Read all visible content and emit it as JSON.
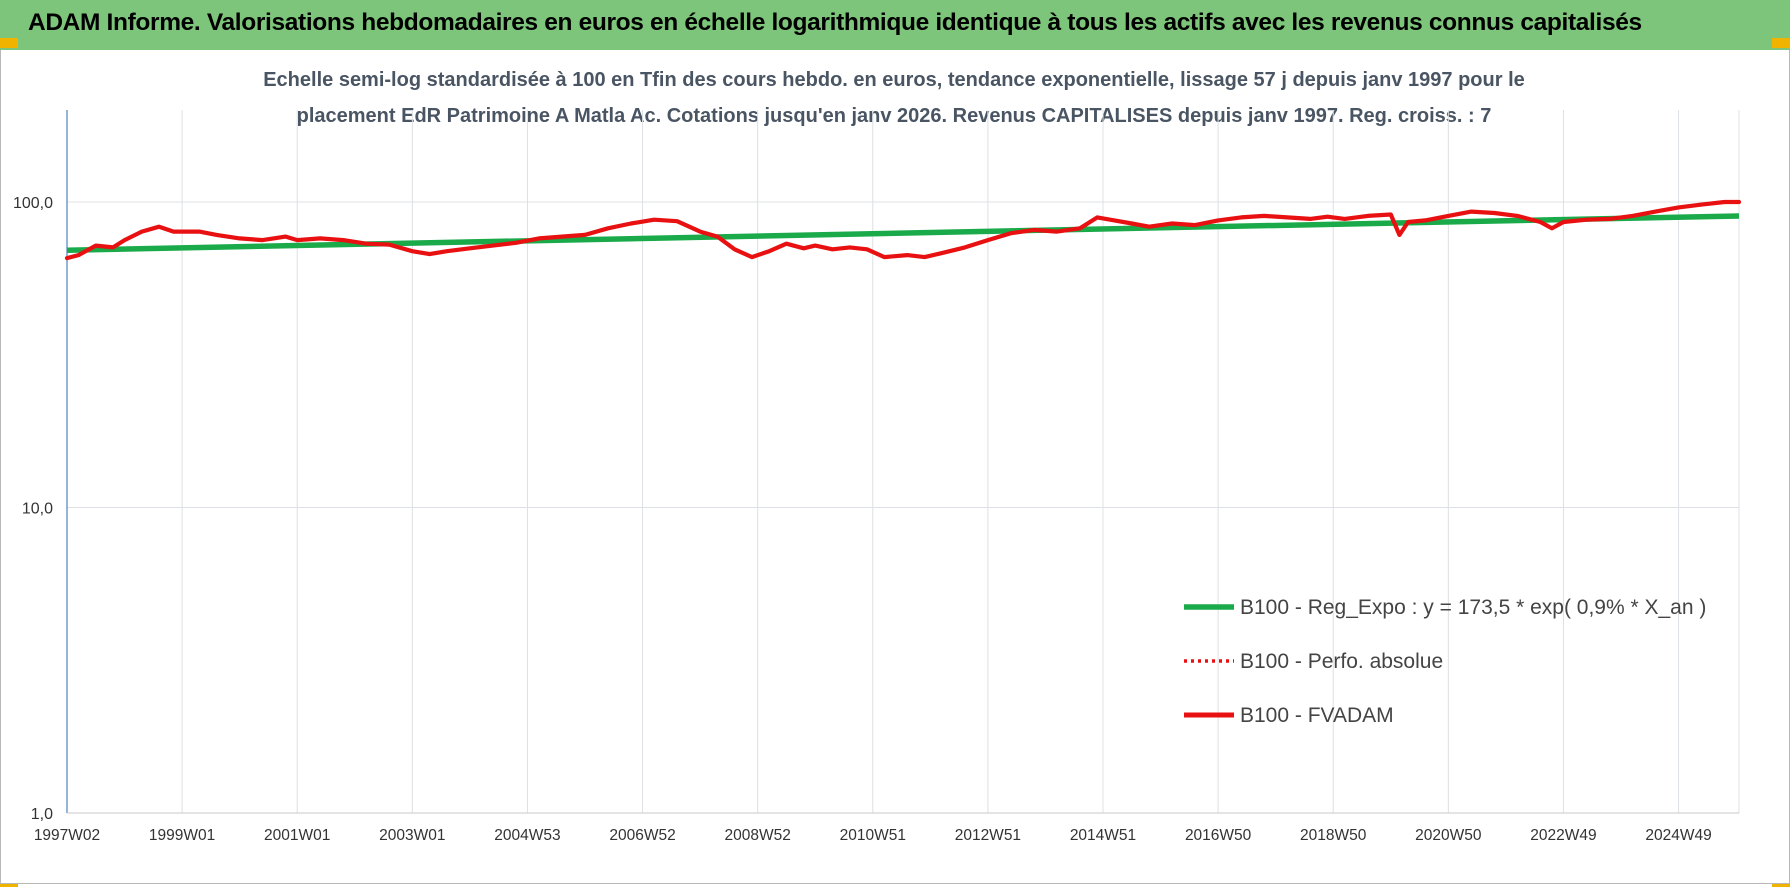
{
  "header": {
    "title": "ADAM Informe. Valorisations hebdomadaires en euros en échelle logarithmique identique à tous les actifs avec les revenus connus capitalisés"
  },
  "colors": {
    "header_bg": "#7dc57a",
    "corner_accent": "#f0b400",
    "trend": "#1aaa4a",
    "fvadam": "#e81010",
    "perfo": "#e81010",
    "grid": "#dde0e4",
    "axis": "#5b8bc4"
  },
  "chart_data": {
    "type": "line",
    "title_lines": [
      "Echelle semi-log standardisée à 100 en Tfin des cours hebdo. en euros, tendance exponentielle, lissage 57 j depuis janv 1997 pour le",
      "placement EdR Patrimoine A Matla Ac. Cotations jusqu'en janv 2026. Revenus CAPITALISES depuis janv 1997. Reg. croiss. : 7"
    ],
    "yscale": "log",
    "ylim": [
      1,
      200
    ],
    "y_ticks": [
      {
        "value": 1,
        "label": "1,0"
      },
      {
        "value": 10,
        "label": "10,0"
      },
      {
        "value": 100,
        "label": "100,0"
      }
    ],
    "xlim": [
      1997.0,
      2026.05
    ],
    "x_ticks": [
      {
        "value": 1997.0,
        "label": "1997W02"
      },
      {
        "value": 1999.0,
        "label": "1999W01"
      },
      {
        "value": 2001.0,
        "label": "2001W01"
      },
      {
        "value": 2003.0,
        "label": "2003W01"
      },
      {
        "value": 2005.0,
        "label": "2004W53"
      },
      {
        "value": 2007.0,
        "label": "2006W52"
      },
      {
        "value": 2009.0,
        "label": "2008W52"
      },
      {
        "value": 2011.0,
        "label": "2010W51"
      },
      {
        "value": 2013.0,
        "label": "2012W51"
      },
      {
        "value": 2015.0,
        "label": "2014W51"
      },
      {
        "value": 2017.0,
        "label": "2016W50"
      },
      {
        "value": 2019.0,
        "label": "2018W50"
      },
      {
        "value": 2021.0,
        "label": "2020W50"
      },
      {
        "value": 2023.0,
        "label": "2022W49"
      },
      {
        "value": 2025.0,
        "label": "2024W49"
      }
    ],
    "legend_position": "right",
    "legend": [
      {
        "name": "B100 - Reg_Expo : y = 173,5 * exp( 0,9% *  X_an )",
        "style": "solid-green"
      },
      {
        "name": "B100 - Perfo. absolue",
        "style": "dotted-red"
      },
      {
        "name": "B100 - FVADAM",
        "style": "solid-red"
      }
    ],
    "series": [
      {
        "name": "B100 - Reg_Expo : y = 173,5 * exp( 0,9% *  X_an )",
        "x": [
          1997.0,
          2026.05
        ],
        "values": [
          69.5,
          90.0
        ]
      },
      {
        "name": "B100 - FVADAM",
        "x": [
          1997.0,
          1997.2,
          1997.5,
          1997.8,
          1998.0,
          1998.3,
          1998.6,
          1998.85,
          1999.0,
          1999.3,
          1999.6,
          2000.0,
          2000.4,
          2000.8,
          2001.0,
          2001.4,
          2001.8,
          2002.2,
          2002.6,
          2003.0,
          2003.3,
          2003.6,
          2004.0,
          2004.4,
          2004.8,
          2005.2,
          2005.6,
          2006.0,
          2006.4,
          2006.8,
          2007.2,
          2007.6,
          2008.0,
          2008.3,
          2008.6,
          2008.9,
          2009.2,
          2009.5,
          2009.8,
          2010.0,
          2010.3,
          2010.6,
          2010.9,
          2011.2,
          2011.6,
          2011.9,
          2012.2,
          2012.6,
          2013.0,
          2013.4,
          2013.8,
          2014.2,
          2014.6,
          2014.9,
          2015.2,
          2015.5,
          2015.8,
          2016.2,
          2016.6,
          2017.0,
          2017.4,
          2017.8,
          2018.2,
          2018.6,
          2018.9,
          2019.2,
          2019.6,
          2020.0,
          2020.15,
          2020.3,
          2020.6,
          2021.0,
          2021.4,
          2021.8,
          2022.2,
          2022.6,
          2022.8,
          2023.0,
          2023.4,
          2023.8,
          2024.2,
          2024.6,
          2025.0,
          2025.4,
          2025.8,
          2026.05
        ],
        "values": [
          65.5,
          67,
          72,
          71,
          75,
          80,
          83,
          80,
          80,
          80,
          78,
          76,
          75,
          77,
          75,
          76,
          75,
          73,
          72.5,
          69,
          67.5,
          69,
          70.5,
          72,
          73.5,
          76,
          77,
          78,
          82,
          85,
          87.5,
          86.5,
          80,
          77,
          70,
          66,
          69,
          73,
          70.5,
          72,
          70,
          71,
          70,
          66,
          67,
          66,
          68,
          71,
          75,
          79,
          81,
          80,
          82,
          89,
          87,
          85,
          83,
          85,
          84,
          87,
          89,
          90,
          89,
          88,
          89.5,
          88,
          90,
          91,
          78,
          86,
          87,
          90,
          93,
          92,
          90,
          86,
          82,
          86,
          87.5,
          88,
          90,
          93,
          96,
          98,
          100,
          100
        ]
      }
    ]
  }
}
